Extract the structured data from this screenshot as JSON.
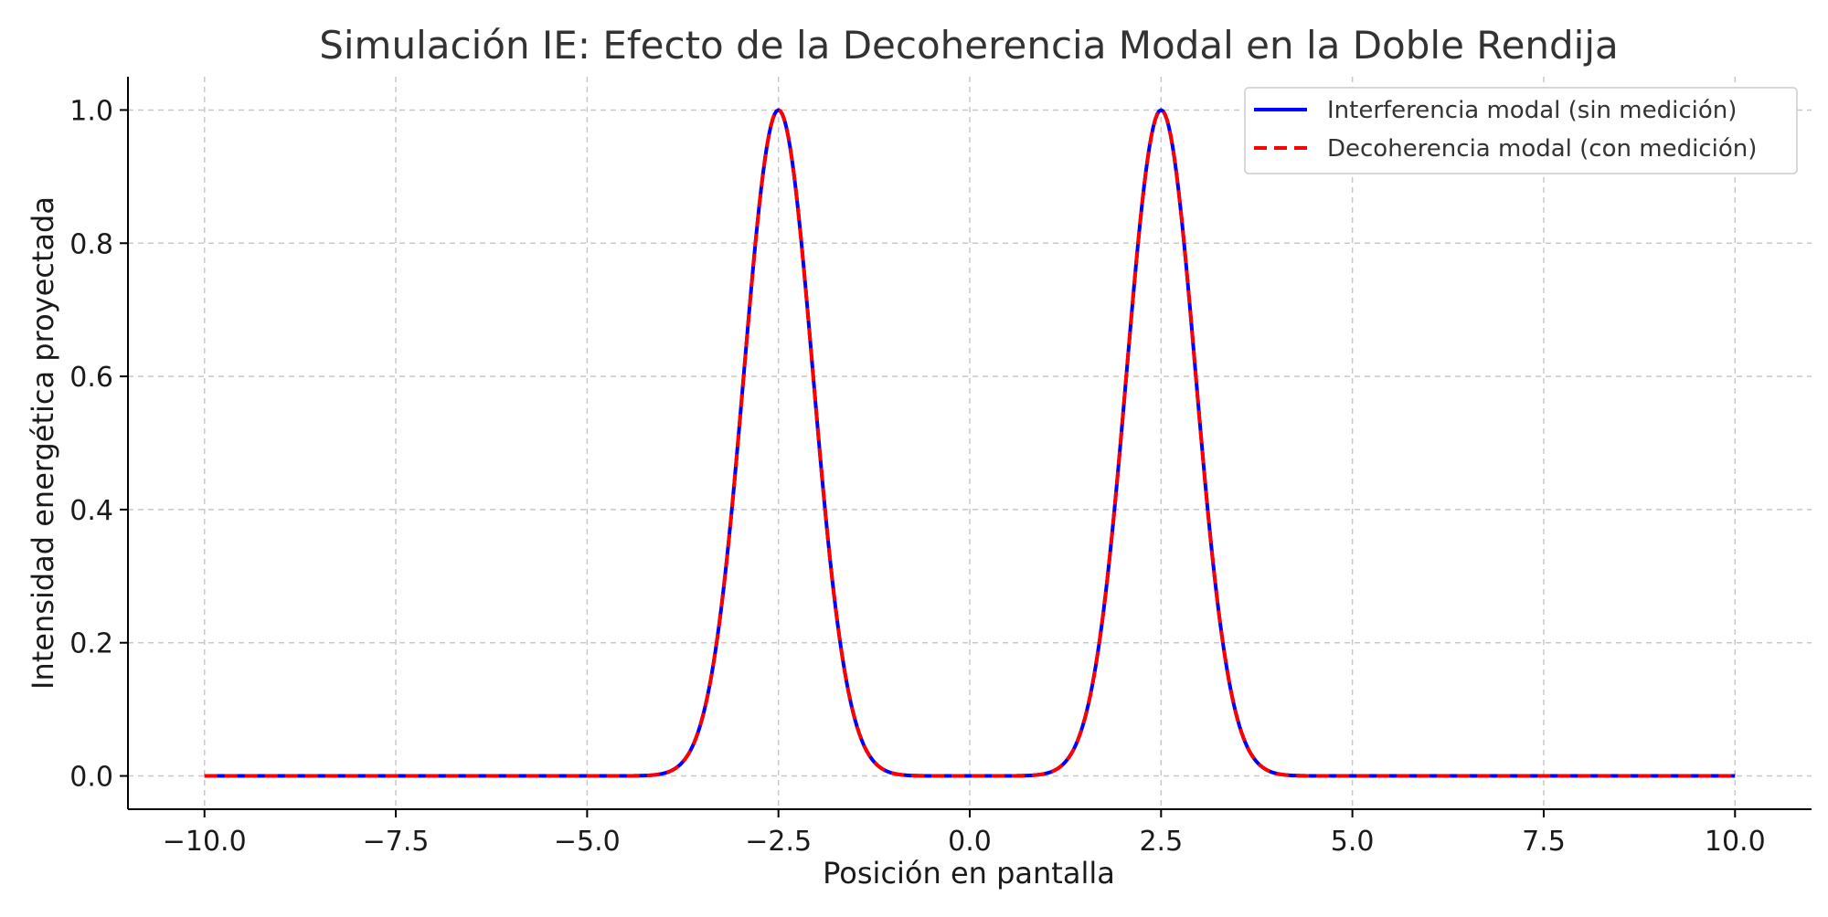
{
  "chart_data": {
    "type": "line",
    "title": "Simulación IE: Efecto de la Decoherencia Modal en la Doble Rendija",
    "xlabel": "Posición en pantalla",
    "ylabel": "Intensidad energética proyectada",
    "xlim": [
      -11,
      11
    ],
    "ylim": [
      -0.05,
      1.05
    ],
    "x_ticks": [
      "−10.0",
      "−7.5",
      "−5.0",
      "−2.5",
      "0.0",
      "2.5",
      "5.0",
      "7.5",
      "10.0"
    ],
    "x_tick_values": [
      -10,
      -7.5,
      -5,
      -2.5,
      0,
      2.5,
      5,
      7.5,
      10
    ],
    "y_ticks": [
      "0.0",
      "0.2",
      "0.4",
      "0.6",
      "0.8",
      "1.0"
    ],
    "y_tick_values": [
      0,
      0.2,
      0.4,
      0.6,
      0.8,
      1.0
    ],
    "grid": true,
    "legend_position": "top-right",
    "x": [
      -10,
      -4,
      -3.75,
      -3.5,
      -3.25,
      -3.0,
      -2.75,
      -2.5,
      -2.25,
      -2.0,
      -1.75,
      -1.5,
      -1.25,
      -1.0,
      1.0,
      1.25,
      1.5,
      1.75,
      2.0,
      2.25,
      2.5,
      2.75,
      3.0,
      3.25,
      3.5,
      3.75,
      4,
      10
    ],
    "series": [
      {
        "name": "Interferencia modal (sin medición)",
        "color": "#0000ff",
        "style": "solid",
        "values": [
          0,
          0.0,
          0.004,
          0.018,
          0.105,
          0.37,
          0.78,
          1.0,
          0.78,
          0.37,
          0.105,
          0.018,
          0.004,
          0.0,
          0.0,
          0.004,
          0.018,
          0.105,
          0.37,
          0.78,
          1.0,
          0.78,
          0.37,
          0.105,
          0.018,
          0.004,
          0.0,
          0
        ]
      },
      {
        "name": "Decoherencia modal (con medición)",
        "color": "#ff0000",
        "style": "dashed",
        "values": [
          0,
          0.0,
          0.004,
          0.018,
          0.105,
          0.37,
          0.78,
          1.0,
          0.78,
          0.37,
          0.105,
          0.018,
          0.004,
          0.0,
          0.0,
          0.004,
          0.018,
          0.105,
          0.37,
          0.78,
          1.0,
          0.78,
          0.37,
          0.105,
          0.018,
          0.004,
          0.0,
          0
        ]
      }
    ]
  }
}
